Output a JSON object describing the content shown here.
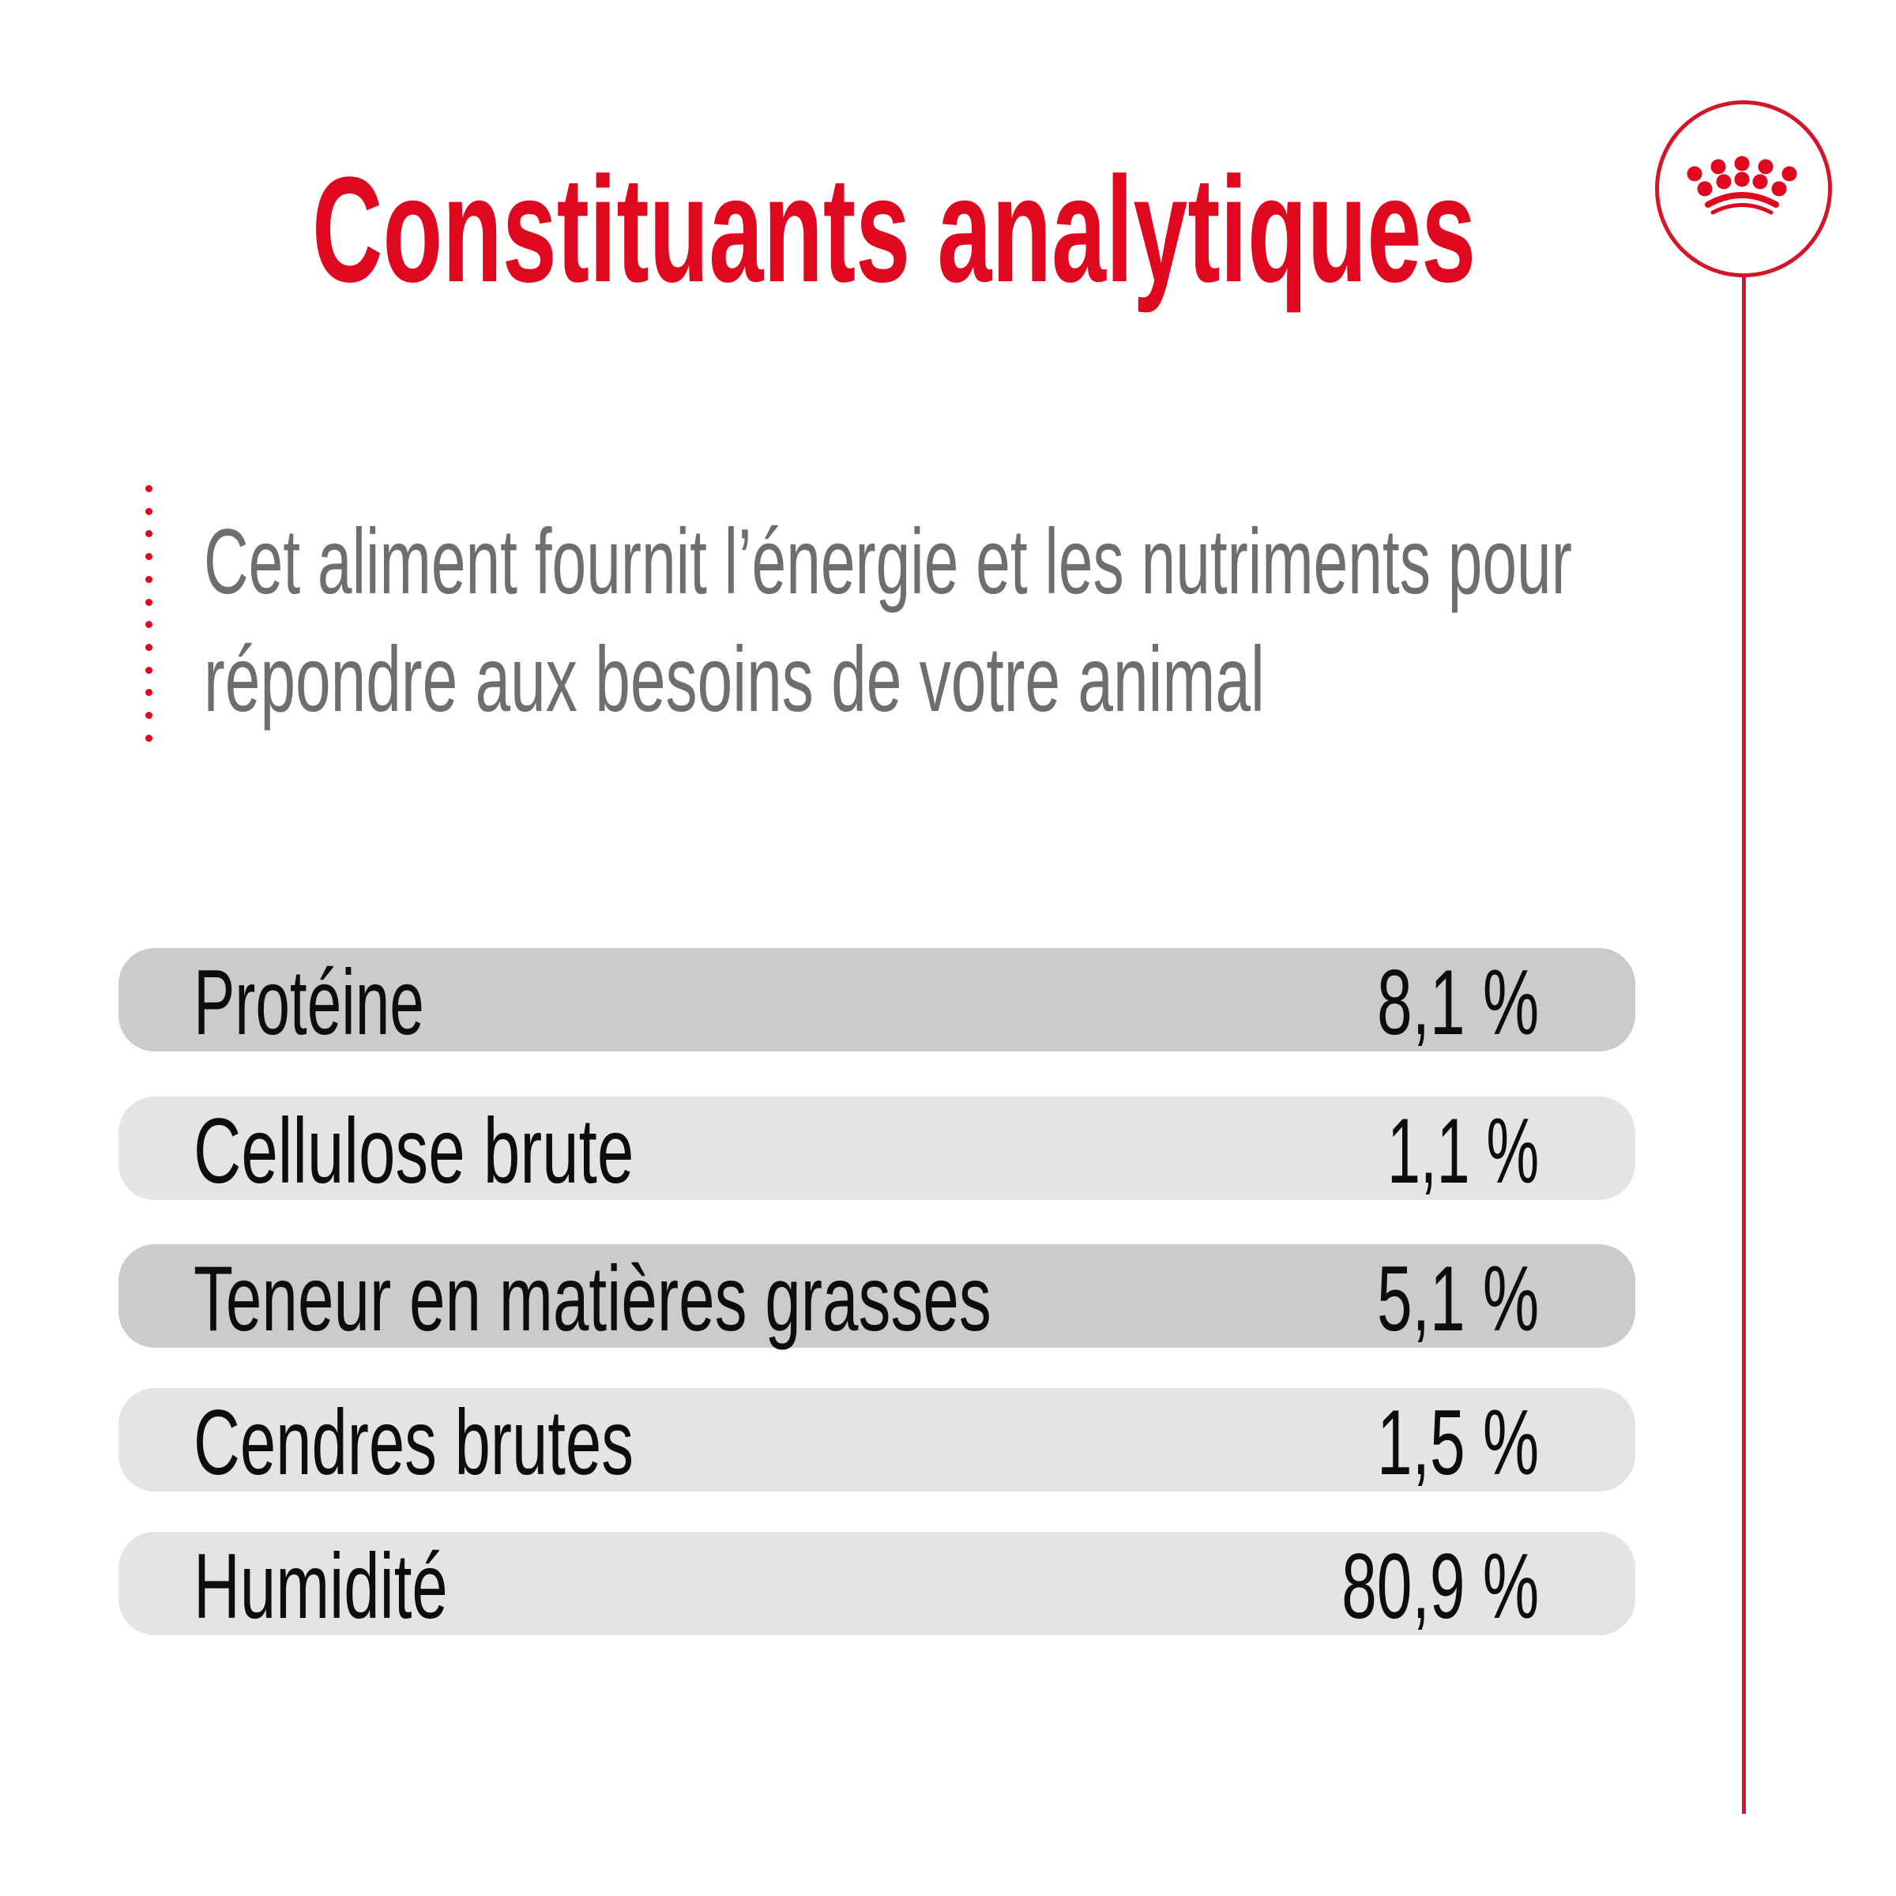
{
  "header": {
    "title": "Constituants analytiques",
    "brand_icon": "crown-icon"
  },
  "intro": {
    "line1": "Cet aliment fournit l’énergie et les nutriments pour",
    "line2": "répondre aux besoins de votre animal"
  },
  "analysis": {
    "rows": [
      {
        "label": "Protéine",
        "value": "8,1 %"
      },
      {
        "label": "Cellulose brute",
        "value": "1,1 %"
      },
      {
        "label": "Teneur en matières grasses",
        "value": "5,1 %"
      },
      {
        "label": "Cendres brutes",
        "value": "1,5 %"
      },
      {
        "label": "Humidité",
        "value": "80,9 %"
      }
    ]
  },
  "colors": {
    "brand_red": "#e0081f",
    "text_gray": "#6e6e6e",
    "row_dark": "#cbcbcb",
    "row_light": "#e4e4e4",
    "text_black": "#0d0d0d"
  }
}
